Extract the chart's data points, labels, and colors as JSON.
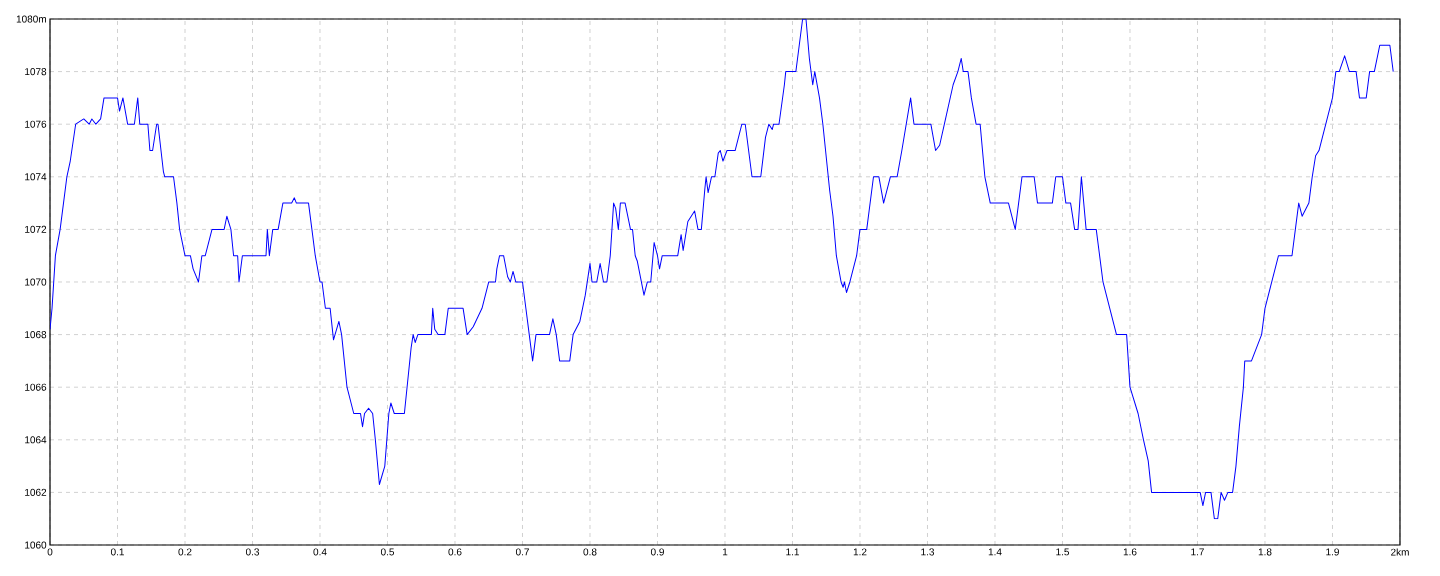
{
  "chart_data": {
    "type": "line",
    "x": [
      0,
      0.003,
      0.008,
      0.015,
      0.02,
      0.025,
      0.03,
      0.038,
      0.05,
      0.058,
      0.062,
      0.068,
      0.075,
      0.08,
      0.1,
      0.103,
      0.108,
      0.115,
      0.125,
      0.13,
      0.133,
      0.145,
      0.148,
      0.152,
      0.158,
      0.16,
      0.168,
      0.17,
      0.183,
      0.188,
      0.192,
      0.2,
      0.208,
      0.212,
      0.22,
      0.225,
      0.23,
      0.24,
      0.258,
      0.262,
      0.268,
      0.272,
      0.278,
      0.28,
      0.285,
      0.32,
      0.322,
      0.325,
      0.33,
      0.338,
      0.345,
      0.358,
      0.362,
      0.365,
      0.383,
      0.388,
      0.393,
      0.4,
      0.403,
      0.408,
      0.415,
      0.42,
      0.428,
      0.432,
      0.44,
      0.45,
      0.46,
      0.463,
      0.466,
      0.472,
      0.478,
      0.482,
      0.488,
      0.496,
      0.502,
      0.505,
      0.51,
      0.525,
      0.535,
      0.538,
      0.541,
      0.545,
      0.565,
      0.567,
      0.57,
      0.575,
      0.585,
      0.59,
      0.612,
      0.618,
      0.627,
      0.64,
      0.65,
      0.66,
      0.662,
      0.666,
      0.672,
      0.678,
      0.682,
      0.686,
      0.69,
      0.7,
      0.705,
      0.71,
      0.715,
      0.72,
      0.74,
      0.745,
      0.75,
      0.755,
      0.77,
      0.775,
      0.785,
      0.793,
      0.8,
      0.803,
      0.81,
      0.815,
      0.82,
      0.825,
      0.83,
      0.835,
      0.838,
      0.842,
      0.845,
      0.852,
      0.86,
      0.863,
      0.867,
      0.87,
      0.88,
      0.885,
      0.89,
      0.895,
      0.9,
      0.903,
      0.907,
      0.93,
      0.935,
      0.938,
      0.945,
      0.955,
      0.96,
      0.965,
      0.97,
      0.972,
      0.975,
      0.98,
      0.985,
      0.99,
      0.993,
      0.997,
      1.003,
      1.015,
      1.025,
      1.03,
      1.04,
      1.053,
      1.06,
      1.065,
      1.07,
      1.072,
      1.08,
      1.088,
      1.09,
      1.105,
      1.11,
      1.115,
      1.12,
      1.125,
      1.13,
      1.133,
      1.14,
      1.145,
      1.155,
      1.16,
      1.165,
      1.172,
      1.175,
      1.177,
      1.18,
      1.185,
      1.195,
      1.2,
      1.21,
      1.22,
      1.228,
      1.235,
      1.245,
      1.255,
      1.262,
      1.275,
      1.28,
      1.305,
      1.312,
      1.318,
      1.325,
      1.338,
      1.345,
      1.35,
      1.353,
      1.36,
      1.365,
      1.372,
      1.378,
      1.385,
      1.393,
      1.405,
      1.42,
      1.43,
      1.44,
      1.458,
      1.463,
      1.485,
      1.49,
      1.5,
      1.505,
      1.512,
      1.518,
      1.523,
      1.528,
      1.535,
      1.55,
      1.56,
      1.57,
      1.58,
      1.595,
      1.6,
      1.612,
      1.62,
      1.627,
      1.632,
      1.68,
      1.704,
      1.708,
      1.712,
      1.72,
      1.725,
      1.73,
      1.735,
      1.74,
      1.745,
      1.752,
      1.757,
      1.762,
      1.768,
      1.77,
      1.78,
      1.795,
      1.8,
      1.81,
      1.82,
      1.84,
      1.845,
      1.85,
      1.855,
      1.865,
      1.87,
      1.875,
      1.88,
      1.89,
      1.9,
      1.905,
      1.91,
      1.918,
      1.925,
      1.935,
      1.94,
      1.95,
      1.955,
      1.962,
      1.97,
      1.985,
      1.99
    ],
    "values": [
      1068.2,
      1069,
      1071,
      1072,
      1073,
      1074,
      1074.6,
      1076,
      1076.2,
      1076,
      1076.2,
      1076,
      1076.2,
      1077,
      1077,
      1076.5,
      1077,
      1076,
      1076,
      1077,
      1076,
      1076,
      1075,
      1075,
      1076,
      1076,
      1074.2,
      1074,
      1074,
      1073,
      1072,
      1071,
      1071,
      1070.5,
      1070,
      1071,
      1071,
      1072,
      1072,
      1072.5,
      1072,
      1071,
      1071,
      1070,
      1071,
      1071,
      1072,
      1071,
      1072,
      1072,
      1073,
      1073,
      1073.2,
      1073,
      1073,
      1072,
      1071,
      1070,
      1070,
      1069,
      1069,
      1067.8,
      1068.5,
      1068,
      1066,
      1065,
      1065,
      1064.5,
      1065,
      1065.2,
      1065,
      1064,
      1062.3,
      1063,
      1065,
      1065.4,
      1065,
      1065,
      1067.5,
      1068,
      1067.7,
      1068,
      1068,
      1069,
      1068.2,
      1068,
      1068,
      1069,
      1069,
      1068,
      1068.3,
      1069,
      1070,
      1070,
      1070.5,
      1071,
      1071,
      1070.2,
      1070,
      1070.4,
      1070,
      1070,
      1069,
      1068,
      1067,
      1068,
      1068,
      1068.6,
      1068,
      1067,
      1067,
      1068,
      1068.5,
      1069.5,
      1070.7,
      1070,
      1070,
      1070.7,
      1070,
      1070,
      1071,
      1073,
      1072.8,
      1072,
      1073,
      1073,
      1072,
      1072,
      1071,
      1070.8,
      1069.5,
      1070,
      1070,
      1071.5,
      1071,
      1070.5,
      1071,
      1071,
      1071.8,
      1071.2,
      1072.3,
      1072.7,
      1072,
      1072,
      1073.5,
      1074,
      1073.4,
      1074,
      1074,
      1074.9,
      1075,
      1074.6,
      1075,
      1075,
      1076,
      1076,
      1074,
      1074,
      1075.5,
      1076,
      1075.8,
      1076,
      1076,
      1077.5,
      1078,
      1078,
      1079,
      1080,
      1080,
      1078.5,
      1077.5,
      1078,
      1077,
      1076,
      1073.5,
      1072.5,
      1071,
      1070,
      1069.8,
      1070,
      1069.6,
      1070,
      1071,
      1072,
      1072,
      1074,
      1074,
      1073,
      1074,
      1074,
      1075,
      1077,
      1076,
      1076,
      1075,
      1075.2,
      1076,
      1077.5,
      1078,
      1078.5,
      1078,
      1078,
      1077,
      1076,
      1076,
      1074,
      1073,
      1073,
      1073,
      1072,
      1074,
      1074,
      1073,
      1073,
      1074,
      1074,
      1073,
      1073,
      1072,
      1072,
      1074,
      1072,
      1072,
      1070,
      1069,
      1068,
      1068,
      1066,
      1065,
      1064,
      1063.2,
      1062,
      1062,
      1062,
      1061.5,
      1062,
      1062,
      1061,
      1061,
      1062,
      1061.7,
      1062,
      1062,
      1063,
      1064.5,
      1066,
      1067,
      1067,
      1068,
      1069,
      1070,
      1071,
      1071,
      1072,
      1073,
      1072.5,
      1073,
      1074,
      1074.8,
      1075,
      1076,
      1077,
      1078,
      1078,
      1078.6,
      1078,
      1078,
      1077,
      1077,
      1078,
      1078,
      1079,
      1079,
      1078
    ],
    "color": "#0000ff",
    "xlim": [
      0,
      2
    ],
    "ylim": [
      1060,
      1080
    ],
    "xticks": [
      0,
      0.1,
      0.2,
      0.3,
      0.4,
      0.5,
      0.6,
      0.7,
      0.8,
      0.9,
      1,
      1.1,
      1.2,
      1.3,
      1.4,
      1.5,
      1.6,
      1.7,
      1.8,
      1.9,
      {
        "value": 2,
        "label": "2km"
      }
    ],
    "yticks": [
      1060,
      1062,
      1064,
      1066,
      1068,
      1070,
      1072,
      1074,
      1076,
      1078,
      {
        "value": 1080,
        "label": "1080m"
      }
    ],
    "grid": true,
    "line_style": "solid"
  }
}
